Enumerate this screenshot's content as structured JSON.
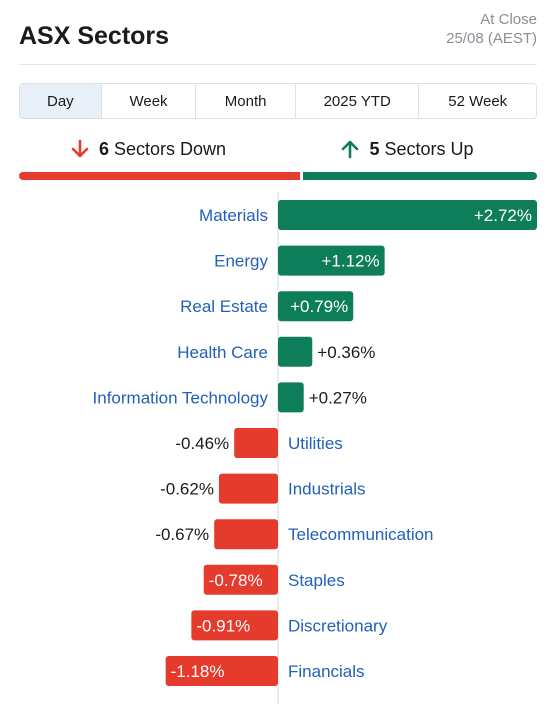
{
  "header": {
    "title": "ASX Sectors",
    "status": "At Close",
    "date": "25/08 (AEST)"
  },
  "tabs": [
    {
      "label": "Day",
      "active": true
    },
    {
      "label": "Week",
      "active": false
    },
    {
      "label": "Month",
      "active": false
    },
    {
      "label": "2025 YTD",
      "active": false
    },
    {
      "label": "52 Week",
      "active": false
    }
  ],
  "summary": {
    "down": {
      "count": "6",
      "label": "Sectors Down",
      "icon": "arrow-down-icon"
    },
    "up": {
      "count": "5",
      "label": "Sectors Up",
      "icon": "arrow-up-icon"
    }
  },
  "colors": {
    "up": "#0e7d5a",
    "down": "#e53b2c",
    "link": "#2360b8"
  },
  "chart_data": {
    "type": "bar",
    "orientation": "horizontal",
    "categories": [
      "Materials",
      "Energy",
      "Real Estate",
      "Health Care",
      "Information Technology",
      "Utilities",
      "Industrials",
      "Telecommunication",
      "Staples",
      "Discretionary",
      "Financials"
    ],
    "values": [
      2.72,
      1.12,
      0.79,
      0.36,
      0.27,
      -0.46,
      -0.62,
      -0.67,
      -0.78,
      -0.91,
      -1.18
    ],
    "labels": [
      "+2.72%",
      "+1.12%",
      "+0.79%",
      "+0.36%",
      "+0.27%",
      "-0.46%",
      "-0.62%",
      "-0.67%",
      "-0.78%",
      "-0.91%",
      "-1.18%"
    ],
    "unit": "%"
  }
}
